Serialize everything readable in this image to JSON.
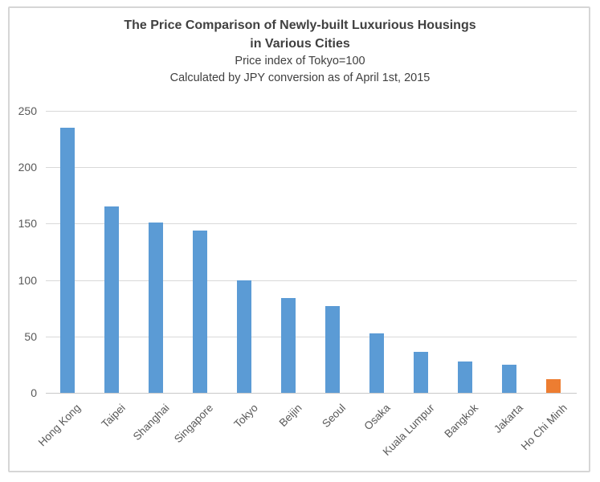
{
  "chart_data": {
    "type": "bar",
    "title_line1": "The Price Comparison of Newly-built Luxurious Housings",
    "title_line2": "in Various Cities",
    "subtitle1": "Price index of Tokyo=100",
    "subtitle2": "Calculated by JPY conversion as of April 1st, 2015",
    "categories": [
      "Hong Kong",
      "Taipei",
      "Shanghai",
      "Singapore",
      "Tokyo",
      "Beijin",
      "Seoul",
      "Osaka",
      "Kuala Lumpur",
      "Bangkok",
      "Jakarta",
      "Ho Chi Minh"
    ],
    "values": [
      235,
      165,
      151,
      144,
      100,
      84,
      77,
      53,
      36,
      28,
      25,
      12
    ],
    "bar_color": "#5b9bd5",
    "highlight_color": "#ed7d31",
    "highlight_index": 11,
    "ylim": [
      0,
      250
    ],
    "yticks": [
      0,
      50,
      100,
      150,
      200,
      250
    ],
    "grid": true,
    "gridline_color": "#d9d9d9",
    "legend": "none",
    "title_color": "#404040",
    "axis_label_color": "#595959"
  }
}
